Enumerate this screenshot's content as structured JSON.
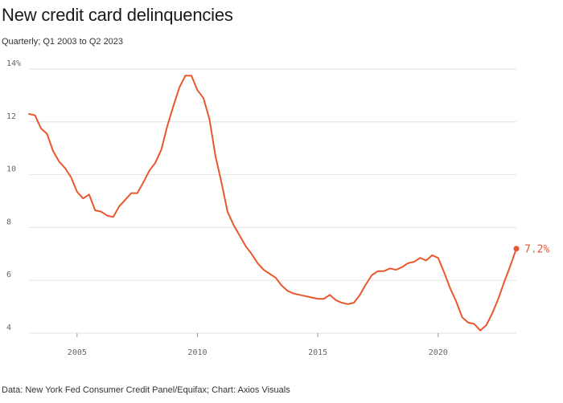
{
  "chart_data": {
    "type": "line",
    "title": "New credit card delinquencies",
    "subtitle": "Quarterly; Q1 2003 to Q2 2023",
    "source": "Data: New York Fed Consumer Credit Panel/Equifax; Chart: Axios Visuals",
    "xlabel": "",
    "ylabel": "",
    "x_ticks": [
      "2005",
      "2010",
      "2015",
      "2020"
    ],
    "y_ticks": [
      "4",
      "6",
      "8",
      "10",
      "12",
      "14%"
    ],
    "ylim": [
      4,
      14
    ],
    "grid": true,
    "line_color": "#e9582c",
    "end_label": "7.2%",
    "series": [
      {
        "x": [
          "2003-Q1",
          "2003-Q2",
          "2003-Q3",
          "2003-Q4",
          "2004-Q1",
          "2004-Q2",
          "2004-Q3",
          "2004-Q4",
          "2005-Q1",
          "2005-Q2",
          "2005-Q3",
          "2005-Q4",
          "2006-Q1",
          "2006-Q2",
          "2006-Q3",
          "2006-Q4",
          "2007-Q1",
          "2007-Q2",
          "2007-Q3",
          "2007-Q4",
          "2008-Q1",
          "2008-Q2",
          "2008-Q3",
          "2008-Q4",
          "2009-Q1",
          "2009-Q2",
          "2009-Q3",
          "2009-Q4",
          "2010-Q1",
          "2010-Q2",
          "2010-Q3",
          "2010-Q4",
          "2011-Q1",
          "2011-Q2",
          "2011-Q3",
          "2011-Q4",
          "2012-Q1",
          "2012-Q2",
          "2012-Q3",
          "2012-Q4",
          "2013-Q1",
          "2013-Q2",
          "2013-Q3",
          "2013-Q4",
          "2014-Q1",
          "2014-Q2",
          "2014-Q3",
          "2014-Q4",
          "2015-Q1",
          "2015-Q2",
          "2015-Q3",
          "2015-Q4",
          "2016-Q1",
          "2016-Q2",
          "2016-Q3",
          "2016-Q4",
          "2017-Q1",
          "2017-Q2",
          "2017-Q3",
          "2017-Q4",
          "2018-Q1",
          "2018-Q2",
          "2018-Q3",
          "2018-Q4",
          "2019-Q1",
          "2019-Q2",
          "2019-Q3",
          "2019-Q4",
          "2020-Q1",
          "2020-Q2",
          "2020-Q3",
          "2020-Q4",
          "2021-Q1",
          "2021-Q2",
          "2021-Q3",
          "2021-Q4",
          "2022-Q1",
          "2022-Q2",
          "2022-Q3",
          "2022-Q4",
          "2023-Q1",
          "2023-Q2"
        ],
        "values": [
          12.3,
          12.25,
          11.75,
          11.55,
          10.9,
          10.5,
          10.25,
          9.9,
          9.35,
          9.1,
          9.25,
          8.65,
          8.6,
          8.45,
          8.4,
          8.8,
          9.05,
          9.3,
          9.3,
          9.7,
          10.15,
          10.45,
          10.95,
          11.85,
          12.6,
          13.3,
          13.75,
          13.75,
          13.2,
          12.9,
          12.1,
          10.7,
          9.7,
          8.6,
          8.1,
          7.7,
          7.3,
          7.0,
          6.65,
          6.4,
          6.25,
          6.1,
          5.8,
          5.6,
          5.5,
          5.45,
          5.4,
          5.35,
          5.3,
          5.3,
          5.45,
          5.25,
          5.15,
          5.1,
          5.15,
          5.45,
          5.85,
          6.2,
          6.35,
          6.35,
          6.45,
          6.4,
          6.5,
          6.65,
          6.7,
          6.85,
          6.75,
          6.95,
          6.85,
          6.3,
          5.7,
          5.2,
          4.6,
          4.4,
          4.35,
          4.1,
          4.3,
          4.75,
          5.3,
          5.95,
          6.55,
          7.2
        ]
      }
    ]
  }
}
